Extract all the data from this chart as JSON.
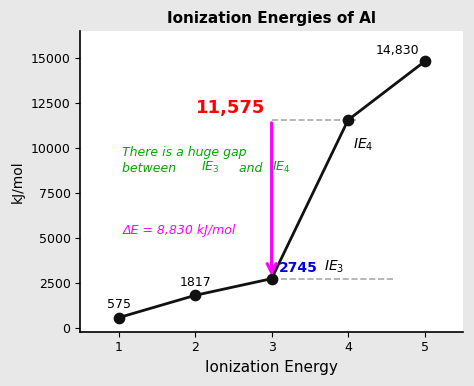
{
  "title": "Ionization Energies of Al",
  "xlabel": "Ionization Energy",
  "ylabel": "kJ/mol",
  "x": [
    1,
    2,
    3,
    4,
    5
  ],
  "y": [
    575,
    1817,
    2745,
    11575,
    14830
  ],
  "ylim": [
    -200,
    16500
  ],
  "xlim": [
    0.5,
    5.5
  ],
  "bg_color": "#e8e8e8",
  "plot_bg": "#ffffff",
  "line_color": "#111111",
  "point_color": "#111111",
  "gap_label_color": "#ff0000",
  "ie3_label_color": "#0000dd",
  "delta_label_color": "#ff00ff",
  "annotation_color": "#00aa00",
  "dashed_color": "#aaaaaa",
  "delta_label": "ΔE = 8,830 kJ/mol",
  "label_575": "575",
  "label_1817": "1817",
  "label_14830": "14,830",
  "label_2745": "2745",
  "label_11575": "11,575",
  "label_ie3": "IE_3",
  "label_ie4": "IE_4"
}
